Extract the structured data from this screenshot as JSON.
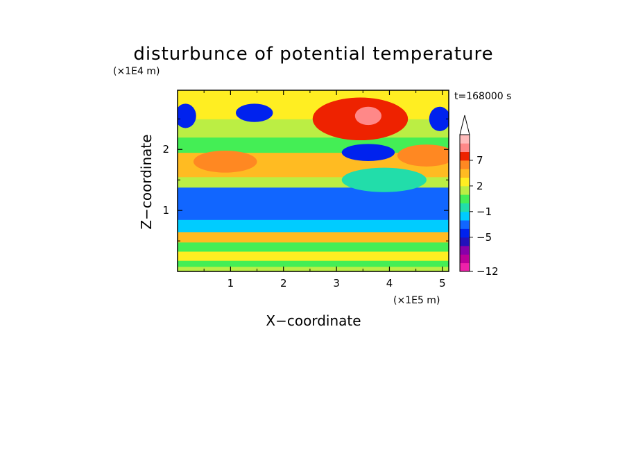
{
  "chart_data": {
    "type": "heatmap",
    "title": "disturbunce of potential temperature",
    "time_label": "t=168000 s",
    "x_axis": {
      "label": "X−coordinate",
      "unit": "(×1E5 m)",
      "range": [
        0,
        5.12
      ],
      "ticks": [
        1,
        2,
        3,
        4,
        5
      ],
      "tick_labels": [
        "1",
        "2",
        "3",
        "4",
        "5"
      ]
    },
    "y_axis": {
      "label": "Z−coordinate",
      "unit": "(×1E4 m)",
      "range": [
        0,
        2.97
      ],
      "ticks": [
        1,
        2
      ],
      "tick_labels": [
        "1",
        "2"
      ]
    },
    "colorbar": {
      "levels": [
        -12,
        -10,
        -8,
        -7,
        -5,
        -4,
        -3,
        -1,
        0,
        1,
        2,
        3,
        5,
        7,
        9,
        11
      ],
      "labels": [
        {
          "value": -12,
          "text": "−12"
        },
        {
          "value": -5,
          "text": "−5"
        },
        {
          "value": -1,
          "text": "−1"
        },
        {
          "value": 2,
          "text": "2"
        },
        {
          "value": 7,
          "text": "7"
        }
      ],
      "colors": [
        "#ee22aa",
        "#bb0099",
        "#8800aa",
        "#2211bb",
        "#0022ee",
        "#1166ff",
        "#00ccff",
        "#22ddaa",
        "#44ee55",
        "#bbee44",
        "#ffee22",
        "#ffbb22",
        "#ff8822",
        "#ee2200",
        "#ff8888",
        "#ffbbbb"
      ],
      "extend_top": true
    },
    "bands": [
      {
        "z": [
          0.0,
          0.08
        ],
        "value": 1
      },
      {
        "z": [
          0.08,
          0.18
        ],
        "value": 0
      },
      {
        "z": [
          0.18,
          0.33
        ],
        "value": 2
      },
      {
        "z": [
          0.33,
          0.48
        ],
        "value": 0
      },
      {
        "z": [
          0.48,
          0.65
        ],
        "value": 3
      },
      {
        "z": [
          0.65,
          0.85
        ],
        "value": -3
      },
      {
        "z": [
          0.85,
          1.38
        ],
        "value": -4
      },
      {
        "z": [
          1.38,
          1.55
        ],
        "value": 1
      },
      {
        "z": [
          1.55,
          1.95
        ],
        "value": 3
      },
      {
        "z": [
          1.95,
          2.2
        ],
        "value": 0
      },
      {
        "z": [
          2.2,
          2.5
        ],
        "value": 1
      },
      {
        "z": [
          2.5,
          2.97
        ],
        "value": 2
      }
    ],
    "features": [
      {
        "x": 3.45,
        "z": 2.5,
        "rx": 0.9,
        "rz": 0.35,
        "value": 7
      },
      {
        "x": 3.6,
        "z": 2.55,
        "rx": 0.25,
        "rz": 0.15,
        "value": 9
      },
      {
        "x": 3.6,
        "z": 1.95,
        "rx": 0.5,
        "rz": 0.14,
        "value": -5
      },
      {
        "x": 0.15,
        "z": 2.55,
        "rx": 0.2,
        "rz": 0.2,
        "value": -5
      },
      {
        "x": 1.45,
        "z": 2.6,
        "rx": 0.35,
        "rz": 0.15,
        "value": -5
      },
      {
        "x": 4.95,
        "z": 2.5,
        "rx": 0.2,
        "rz": 0.2,
        "value": -5
      },
      {
        "x": 0.9,
        "z": 1.8,
        "rx": 0.6,
        "rz": 0.18,
        "value": 5
      },
      {
        "x": 4.7,
        "z": 1.9,
        "rx": 0.55,
        "rz": 0.18,
        "value": 5
      },
      {
        "x": 3.9,
        "z": 1.5,
        "rx": 0.8,
        "rz": 0.2,
        "value": -1
      }
    ]
  }
}
